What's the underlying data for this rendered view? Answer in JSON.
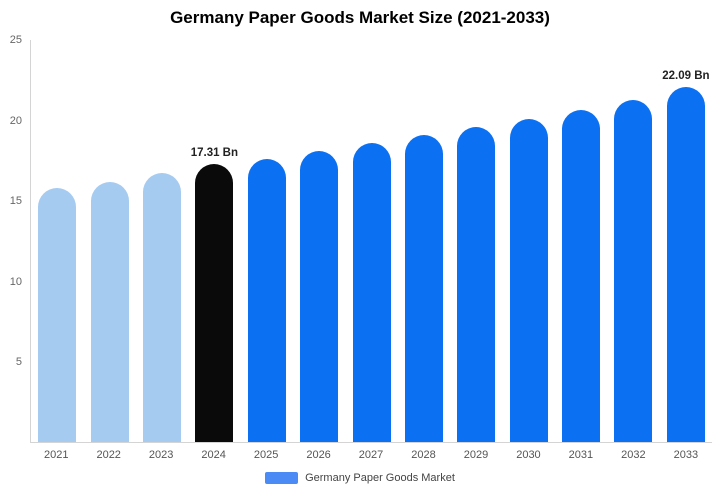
{
  "title": "Germany Paper Goods Market Size (2021-2033)",
  "legend": {
    "label": "Germany Paper Goods Market",
    "swatch_color": "#4B8BF5"
  },
  "colors": {
    "historical_bar": "#A5CBF1",
    "current_year_bar": "#0A0A0A",
    "forecast_bar": "#0B70F2"
  },
  "chart_data": {
    "type": "bar",
    "title": "Germany Paper Goods Market Size (2021-2033)",
    "categories": [
      "2021",
      "2022",
      "2023",
      "2024",
      "2025",
      "2026",
      "2027",
      "2028",
      "2029",
      "2030",
      "2031",
      "2032",
      "2033"
    ],
    "values": [
      15.8,
      16.2,
      16.7,
      17.31,
      17.6,
      18.1,
      18.6,
      19.1,
      19.6,
      20.1,
      20.65,
      21.25,
      22.09
    ],
    "unit": "Bn",
    "bar_colors": [
      "#A5CBF1",
      "#A5CBF1",
      "#A5CBF1",
      "#0A0A0A",
      "#0B70F2",
      "#0B70F2",
      "#0B70F2",
      "#0B70F2",
      "#0B70F2",
      "#0B70F2",
      "#0B70F2",
      "#0B70F2",
      "#0B70F2"
    ],
    "data_labels": {
      "3": "17.31 Bn",
      "12": "22.09 Bn"
    },
    "ylim": [
      0,
      25
    ],
    "yticks": [
      25,
      20,
      15,
      10,
      5
    ],
    "xlabel": "",
    "ylabel": "",
    "grid": false,
    "legend_position": "bottom"
  }
}
